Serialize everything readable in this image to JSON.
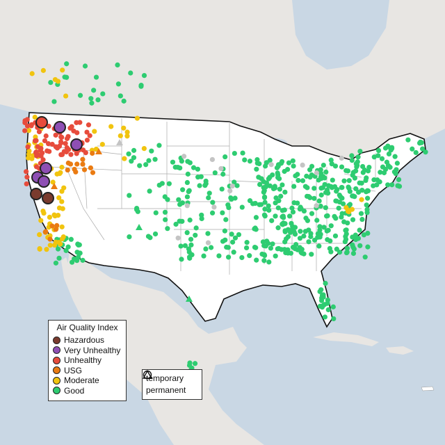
{
  "legend": {
    "title": "Air Quality Index",
    "items": [
      {
        "label": "Hazardous",
        "color": "#7a3b2e"
      },
      {
        "label": "Very Unhealthy",
        "color": "#8e4fb4"
      },
      {
        "label": "Unhealthy",
        "color": "#e74c3c"
      },
      {
        "label": "USG",
        "color": "#ea7b12"
      },
      {
        "label": "Moderate",
        "color": "#f1c40f"
      },
      {
        "label": "Good",
        "color": "#2ecc71"
      }
    ]
  },
  "monitor_types": {
    "items": [
      {
        "label": "temporary",
        "icon": "circle-outline-icon"
      },
      {
        "label": "permanent",
        "icon": "triangle-outline-icon"
      }
    ]
  },
  "colors": {
    "water": "#c9d7e4",
    "land": "#e8e6e3",
    "us_land": "#ffffff",
    "no_data": "#c4c4c4"
  }
}
